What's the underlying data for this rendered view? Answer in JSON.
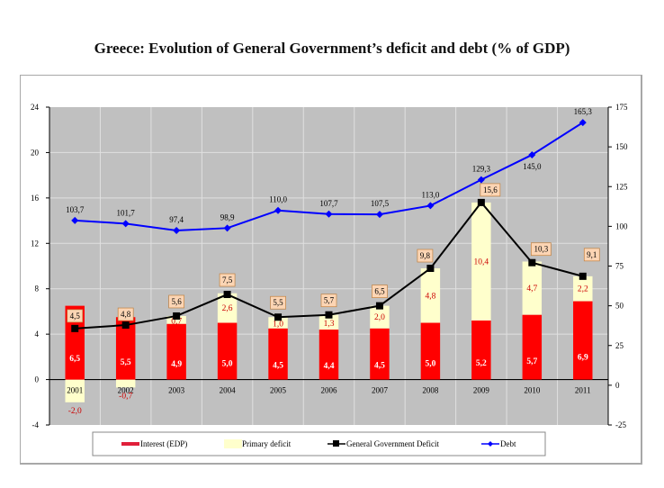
{
  "chart_data": {
    "type": "bar",
    "title": "Greece: Evolution of General Government’s deficit and debt (% of GDP)",
    "categories": [
      "2001",
      "2002",
      "2003",
      "2004",
      "2005",
      "2006",
      "2007",
      "2008",
      "2009",
      "2010",
      "2011"
    ],
    "series": [
      {
        "name": "Interest (EDP)",
        "kind": "stacked-bar",
        "axis": "left",
        "color": "#ff0000",
        "values": [
          6.5,
          5.5,
          4.9,
          5.0,
          4.5,
          4.4,
          4.5,
          5.0,
          5.2,
          5.7,
          6.9
        ],
        "labels": [
          "6,5",
          "5,5",
          "4,9",
          "5,0",
          "4,5",
          "4,4",
          "4,5",
          "5,0",
          "5,2",
          "5,7",
          "6,9"
        ]
      },
      {
        "name": "Primary deficit",
        "kind": "stacked-bar",
        "axis": "left",
        "color": "#ffffcc",
        "values": [
          -2.0,
          -0.7,
          0.7,
          2.6,
          1.0,
          1.3,
          2.0,
          4.8,
          10.4,
          4.7,
          2.2
        ],
        "labels": [
          "-2,0",
          "-0,7",
          "0,7",
          "2,6",
          "1,0",
          "1,3",
          "2,0",
          "4,8",
          "10,4",
          "4,7",
          "2,2"
        ]
      },
      {
        "name": "General Government Deficit",
        "kind": "line",
        "axis": "left",
        "color": "#000000",
        "values": [
          4.5,
          4.8,
          5.6,
          7.5,
          5.5,
          5.7,
          6.5,
          9.8,
          15.6,
          10.3,
          9.1
        ],
        "labels": [
          "4,5",
          "4,8",
          "5,6",
          "7,5",
          "5,5",
          "5,7",
          "6,5",
          "9,8",
          "15,6",
          "10,3",
          "9,1"
        ]
      },
      {
        "name": "Debt",
        "kind": "line",
        "axis": "right",
        "color": "#0000ff",
        "values": [
          103.7,
          101.7,
          97.4,
          98.9,
          110.0,
          107.7,
          107.5,
          113.0,
          129.3,
          145.0,
          165.3
        ],
        "labels": [
          "103,7",
          "101,7",
          "97,4",
          "98,9",
          "110,0",
          "107,7",
          "107,5",
          "113,0",
          "129,3",
          "145,0",
          "165,3"
        ]
      }
    ],
    "left_axis": {
      "ylim": [
        -4,
        24
      ],
      "ticks": [
        "-4",
        "0",
        "4",
        "8",
        "12",
        "16",
        "20",
        "24"
      ]
    },
    "right_axis": {
      "ylim": [
        -25,
        175
      ],
      "ticks": [
        "-25",
        "0",
        "25",
        "50",
        "75",
        "100",
        "125",
        "150",
        "175"
      ]
    },
    "xlabel": "",
    "ylabel": "",
    "grid": true,
    "legend_position": "bottom",
    "colors": {
      "plot_bg": "#c0c0c0",
      "grid": "#e0e0e0",
      "label_box": "#fcd5b4",
      "label_box_border": "#c08040",
      "bar_label_red": "#cc0000"
    }
  }
}
